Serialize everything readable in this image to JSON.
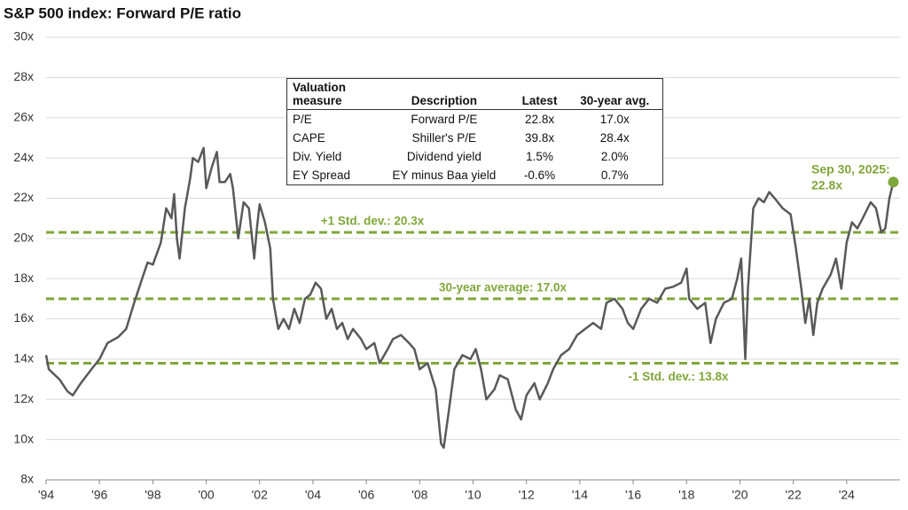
{
  "chart_data": {
    "type": "line",
    "title": "S&P 500 index: Forward P/E ratio",
    "x": [
      1994.0,
      1994.1,
      1994.5,
      1994.8,
      1995.0,
      1995.3,
      1995.7,
      1996.0,
      1996.3,
      1996.7,
      1997.0,
      1997.3,
      1997.6,
      1997.8,
      1998.0,
      1998.3,
      1998.5,
      1998.7,
      1998.8,
      1998.9,
      1999.0,
      1999.2,
      1999.4,
      1999.5,
      1999.7,
      1999.9,
      2000.0,
      2000.2,
      2000.4,
      2000.5,
      2000.7,
      2000.9,
      2001.0,
      2001.2,
      2001.4,
      2001.6,
      2001.8,
      2001.9,
      2002.0,
      2002.2,
      2002.4,
      2002.5,
      2002.7,
      2002.9,
      2003.1,
      2003.3,
      2003.5,
      2003.7,
      2003.9,
      2004.1,
      2004.3,
      2004.5,
      2004.7,
      2004.9,
      2005.1,
      2005.3,
      2005.5,
      2005.8,
      2006.0,
      2006.3,
      2006.5,
      2006.8,
      2007.0,
      2007.3,
      2007.6,
      2007.8,
      2008.0,
      2008.3,
      2008.6,
      2008.8,
      2008.9,
      2009.1,
      2009.3,
      2009.6,
      2009.9,
      2010.1,
      2010.3,
      2010.5,
      2010.8,
      2011.0,
      2011.3,
      2011.6,
      2011.8,
      2012.0,
      2012.3,
      2012.5,
      2012.8,
      2013.0,
      2013.3,
      2013.6,
      2013.9,
      2014.2,
      2014.5,
      2014.8,
      2015.0,
      2015.3,
      2015.6,
      2015.8,
      2016.0,
      2016.3,
      2016.6,
      2016.9,
      2017.2,
      2017.5,
      2017.8,
      2018.0,
      2018.1,
      2018.4,
      2018.7,
      2018.9,
      2019.1,
      2019.4,
      2019.7,
      2019.9,
      2020.05,
      2020.2,
      2020.3,
      2020.5,
      2020.7,
      2020.9,
      2021.1,
      2021.3,
      2021.6,
      2021.9,
      2022.1,
      2022.3,
      2022.45,
      2022.6,
      2022.75,
      2022.9,
      2023.1,
      2023.4,
      2023.6,
      2023.8,
      2024.0,
      2024.2,
      2024.4,
      2024.6,
      2024.9,
      2025.1,
      2025.3,
      2025.45,
      2025.6,
      2025.75
    ],
    "series": [
      {
        "color": "#595959",
        "values": [
          14.2,
          13.5,
          13.0,
          12.4,
          12.2,
          12.8,
          13.5,
          14.0,
          14.8,
          15.1,
          15.5,
          16.8,
          18.0,
          18.8,
          18.7,
          19.8,
          21.5,
          21.0,
          22.2,
          20.0,
          19.0,
          21.5,
          23.0,
          24.0,
          23.8,
          24.5,
          22.5,
          23.5,
          24.3,
          22.8,
          22.8,
          23.2,
          22.5,
          20.0,
          21.8,
          21.5,
          19.0,
          20.5,
          21.7,
          20.8,
          19.5,
          17.0,
          15.5,
          16.0,
          15.5,
          16.5,
          15.8,
          17.0,
          17.2,
          17.8,
          17.5,
          16.0,
          16.5,
          15.5,
          15.8,
          15.0,
          15.5,
          15.0,
          14.5,
          14.8,
          13.8,
          14.5,
          15.0,
          15.2,
          14.8,
          14.5,
          13.5,
          13.8,
          12.5,
          9.8,
          9.6,
          11.5,
          13.5,
          14.2,
          14.0,
          14.5,
          13.5,
          12.0,
          12.5,
          13.2,
          13.0,
          11.5,
          11.0,
          12.2,
          12.8,
          12.0,
          12.8,
          13.5,
          14.2,
          14.5,
          15.2,
          15.5,
          15.8,
          15.5,
          16.8,
          17.0,
          16.5,
          15.8,
          15.5,
          16.5,
          17.0,
          16.8,
          17.5,
          17.6,
          17.8,
          18.5,
          17.0,
          16.5,
          16.8,
          14.8,
          16.0,
          16.8,
          17.0,
          18.0,
          19.0,
          14.0,
          17.5,
          21.5,
          22.0,
          21.8,
          22.3,
          22.0,
          21.5,
          21.2,
          19.5,
          17.5,
          15.8,
          17.0,
          15.2,
          16.8,
          17.5,
          18.2,
          19.0,
          17.5,
          19.8,
          20.8,
          20.5,
          21.0,
          21.8,
          21.5,
          20.3,
          20.5,
          22.0,
          22.8
        ]
      }
    ],
    "xlim": [
      1994,
      2026
    ],
    "xticks": [
      {
        "value": 1994,
        "label": "'94"
      },
      {
        "value": 1996,
        "label": "'96"
      },
      {
        "value": 1998,
        "label": "'98"
      },
      {
        "value": 2000,
        "label": "'00"
      },
      {
        "value": 2002,
        "label": "'02"
      },
      {
        "value": 2004,
        "label": "'04"
      },
      {
        "value": 2006,
        "label": "'06"
      },
      {
        "value": 2008,
        "label": "'08"
      },
      {
        "value": 2010,
        "label": "'10"
      },
      {
        "value": 2012,
        "label": "'12"
      },
      {
        "value": 2014,
        "label": "'14"
      },
      {
        "value": 2016,
        "label": "'16"
      },
      {
        "value": 2018,
        "label": "'18"
      },
      {
        "value": 2020,
        "label": "'20"
      },
      {
        "value": 2022,
        "label": "'22"
      },
      {
        "value": 2024,
        "label": "'24"
      }
    ],
    "ylim": [
      8,
      30
    ],
    "yticks": [
      {
        "value": 8,
        "label": "8x"
      },
      {
        "value": 10,
        "label": "10x"
      },
      {
        "value": 12,
        "label": "12x"
      },
      {
        "value": 14,
        "label": "14x"
      },
      {
        "value": 16,
        "label": "16x"
      },
      {
        "value": 18,
        "label": "18x"
      },
      {
        "value": 20,
        "label": "20x"
      },
      {
        "value": 22,
        "label": "22x"
      },
      {
        "value": 24,
        "label": "24x"
      },
      {
        "value": 26,
        "label": "26x"
      },
      {
        "value": 28,
        "label": "28x"
      },
      {
        "value": 30,
        "label": "30x"
      }
    ],
    "grid": true,
    "reference_lines": [
      {
        "value": 20.3,
        "label": "+1 Std. dev.: 20.3x",
        "color": "#7fa63a"
      },
      {
        "value": 17.0,
        "label": "30-year average: 17.0x",
        "color": "#7fa63a"
      },
      {
        "value": 13.8,
        "label": "-1 Std. dev.: 13.8x",
        "color": "#7fa63a"
      }
    ],
    "annotations": [
      "Sep 30, 2025:",
      "22.8x"
    ],
    "table": {
      "header": [
        "Valuation measure",
        "Description",
        "Latest",
        "30-year avg."
      ],
      "rows": [
        [
          "P/E",
          "Forward P/E",
          "22.8x",
          "17.0x"
        ],
        [
          "CAPE",
          "Shiller's P/E",
          "39.8x",
          "28.4x"
        ],
        [
          "Div. Yield",
          "Dividend yield",
          "1.5%",
          "2.0%"
        ],
        [
          "EY Spread",
          "EY minus Baa yield",
          "-0.6%",
          "0.7%"
        ]
      ]
    }
  }
}
